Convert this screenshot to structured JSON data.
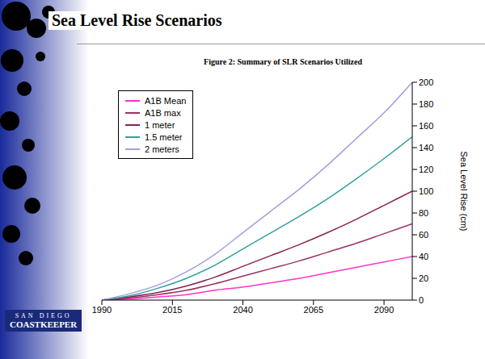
{
  "header": {
    "title": "Sea Level Rise Scenarios"
  },
  "logo": [
    "SAN DIEGO",
    "COASTKEEPER"
  ],
  "chart_data": {
    "type": "line",
    "title": "Figure 2: Summary of SLR Scenarios Utilized",
    "y_label": "Sea Level Rise (cm)",
    "x": [
      1990,
      2000,
      2010,
      2020,
      2030,
      2040,
      2050,
      2060,
      2070,
      2080,
      2090,
      2100
    ],
    "series": [
      {
        "name": "A1B Mean",
        "color": "#ff33cc",
        "values": [
          0,
          1,
          3,
          5,
          9,
          12,
          16,
          20,
          25,
          30,
          35,
          40
        ]
      },
      {
        "name": "A1B max",
        "color": "#993366",
        "values": [
          0,
          2,
          5,
          9,
          15,
          22,
          29,
          36,
          44,
          52,
          61,
          70
        ]
      },
      {
        "name": "1 meter",
        "color": "#8b2252",
        "values": [
          0,
          3,
          7,
          13,
          21,
          31,
          41,
          51,
          62,
          74,
          87,
          100
        ]
      },
      {
        "name": "1.5 meter",
        "color": "#33a0a0",
        "values": [
          0,
          4,
          11,
          20,
          32,
          47,
          62,
          77,
          93,
          111,
          130,
          150
        ]
      },
      {
        "name": "2 meters",
        "color": "#a0a0e0",
        "values": [
          0,
          6,
          14,
          26,
          42,
          62,
          82,
          102,
          124,
          148,
          172,
          200
        ]
      }
    ],
    "xlim": [
      1990,
      2100
    ],
    "xticks": [
      1990,
      2015,
      2040,
      2065,
      2090
    ],
    "ylim": [
      0,
      200
    ],
    "yticks": [
      0,
      20,
      40,
      60,
      80,
      100,
      120,
      140,
      160,
      180,
      200
    ],
    "grid": false,
    "legend": "upper left"
  }
}
